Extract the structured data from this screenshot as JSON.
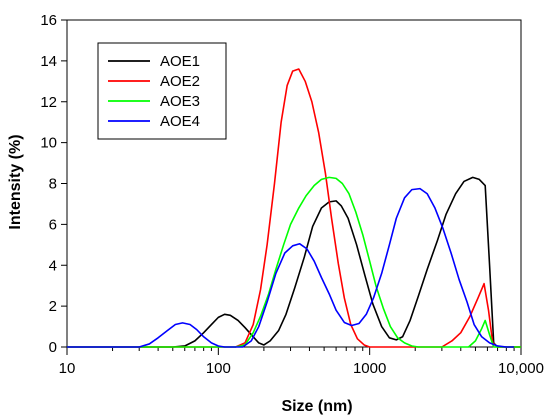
{
  "chart_data": {
    "type": "line",
    "title": "",
    "xlabel": "Size (nm)",
    "ylabel": "Intensity (%)",
    "xscale": "log",
    "xlim": [
      10,
      10000
    ],
    "ylim": [
      0,
      16
    ],
    "x_ticks": [
      10,
      100,
      1000,
      10000
    ],
    "x_tick_labels": [
      "10",
      "100",
      "1000",
      "10,000"
    ],
    "y_ticks": [
      0,
      2,
      4,
      6,
      8,
      10,
      12,
      14,
      16
    ],
    "y_tick_labels": [
      "0",
      "2",
      "4",
      "6",
      "8",
      "10",
      "12",
      "14",
      "16"
    ],
    "grid": false,
    "legend_position": "top-left",
    "series": [
      {
        "name": "AOE1",
        "color": "#000000",
        "points": [
          [
            10,
            0
          ],
          [
            50,
            0
          ],
          [
            60,
            0.05
          ],
          [
            70,
            0.3
          ],
          [
            80,
            0.7
          ],
          [
            90,
            1.1
          ],
          [
            100,
            1.45
          ],
          [
            110,
            1.6
          ],
          [
            120,
            1.55
          ],
          [
            135,
            1.3
          ],
          [
            150,
            0.95
          ],
          [
            170,
            0.5
          ],
          [
            185,
            0.2
          ],
          [
            200,
            0.1
          ],
          [
            220,
            0.3
          ],
          [
            250,
            0.8
          ],
          [
            280,
            1.6
          ],
          [
            320,
            2.9
          ],
          [
            370,
            4.4
          ],
          [
            420,
            5.9
          ],
          [
            480,
            6.8
          ],
          [
            540,
            7.1
          ],
          [
            600,
            7.15
          ],
          [
            650,
            6.9
          ],
          [
            720,
            6.3
          ],
          [
            820,
            5.0
          ],
          [
            930,
            3.5
          ],
          [
            1050,
            2.1
          ],
          [
            1200,
            1.0
          ],
          [
            1350,
            0.45
          ],
          [
            1500,
            0.35
          ],
          [
            1650,
            0.5
          ],
          [
            1850,
            1.3
          ],
          [
            2100,
            2.5
          ],
          [
            2400,
            3.8
          ],
          [
            2800,
            5.2
          ],
          [
            3200,
            6.5
          ],
          [
            3700,
            7.5
          ],
          [
            4200,
            8.1
          ],
          [
            4800,
            8.3
          ],
          [
            5300,
            8.2
          ],
          [
            5800,
            7.9
          ],
          [
            6200,
            4.0
          ],
          [
            6600,
            0.2
          ],
          [
            7000,
            0
          ],
          [
            10000,
            0
          ]
        ]
      },
      {
        "name": "AOE2",
        "color": "#ff0000",
        "points": [
          [
            10,
            0
          ],
          [
            130,
            0
          ],
          [
            150,
            0.2
          ],
          [
            170,
            1.1
          ],
          [
            190,
            2.8
          ],
          [
            210,
            5.0
          ],
          [
            235,
            8.0
          ],
          [
            260,
            11.0
          ],
          [
            285,
            12.8
          ],
          [
            310,
            13.5
          ],
          [
            340,
            13.6
          ],
          [
            375,
            13.0
          ],
          [
            415,
            12.0
          ],
          [
            460,
            10.5
          ],
          [
            510,
            8.5
          ],
          [
            560,
            6.3
          ],
          [
            620,
            4.1
          ],
          [
            680,
            2.4
          ],
          [
            750,
            1.1
          ],
          [
            830,
            0.4
          ],
          [
            920,
            0.1
          ],
          [
            1000,
            0
          ],
          [
            3000,
            0
          ],
          [
            3500,
            0.3
          ],
          [
            4000,
            0.7
          ],
          [
            4600,
            1.5
          ],
          [
            5200,
            2.4
          ],
          [
            5700,
            3.1
          ],
          [
            6100,
            1.8
          ],
          [
            6500,
            0.2
          ],
          [
            7000,
            0
          ],
          [
            10000,
            0
          ]
        ]
      },
      {
        "name": "AOE3",
        "color": "#00ff00",
        "points": [
          [
            10,
            0
          ],
          [
            130,
            0
          ],
          [
            150,
            0.1
          ],
          [
            170,
            0.7
          ],
          [
            190,
            1.5
          ],
          [
            215,
            2.6
          ],
          [
            240,
            3.8
          ],
          [
            270,
            5.0
          ],
          [
            300,
            6.0
          ],
          [
            340,
            6.8
          ],
          [
            380,
            7.4
          ],
          [
            430,
            7.9
          ],
          [
            480,
            8.2
          ],
          [
            540,
            8.3
          ],
          [
            600,
            8.25
          ],
          [
            660,
            8.0
          ],
          [
            730,
            7.5
          ],
          [
            810,
            6.6
          ],
          [
            900,
            5.5
          ],
          [
            1000,
            4.2
          ],
          [
            1100,
            3.0
          ],
          [
            1230,
            1.9
          ],
          [
            1370,
            1.0
          ],
          [
            1530,
            0.45
          ],
          [
            1700,
            0.2
          ],
          [
            1900,
            0.05
          ],
          [
            2100,
            0
          ],
          [
            4500,
            0
          ],
          [
            5000,
            0.3
          ],
          [
            5500,
            0.9
          ],
          [
            5800,
            1.3
          ],
          [
            6200,
            0.6
          ],
          [
            6600,
            0
          ],
          [
            10000,
            0
          ]
        ]
      },
      {
        "name": "AOE4",
        "color": "#0000ff",
        "points": [
          [
            10,
            0
          ],
          [
            30,
            0
          ],
          [
            35,
            0.15
          ],
          [
            40,
            0.45
          ],
          [
            46,
            0.8
          ],
          [
            52,
            1.1
          ],
          [
            58,
            1.18
          ],
          [
            65,
            1.1
          ],
          [
            72,
            0.85
          ],
          [
            80,
            0.5
          ],
          [
            90,
            0.2
          ],
          [
            100,
            0.05
          ],
          [
            110,
            0
          ],
          [
            145,
            0
          ],
          [
            165,
            0.3
          ],
          [
            185,
            1.0
          ],
          [
            210,
            2.2
          ],
          [
            240,
            3.6
          ],
          [
            275,
            4.6
          ],
          [
            310,
            4.95
          ],
          [
            345,
            5.05
          ],
          [
            385,
            4.8
          ],
          [
            430,
            4.2
          ],
          [
            480,
            3.4
          ],
          [
            540,
            2.6
          ],
          [
            600,
            1.8
          ],
          [
            680,
            1.2
          ],
          [
            760,
            1.05
          ],
          [
            850,
            1.15
          ],
          [
            950,
            1.6
          ],
          [
            1060,
            2.4
          ],
          [
            1200,
            3.6
          ],
          [
            1350,
            5.0
          ],
          [
            1500,
            6.3
          ],
          [
            1700,
            7.3
          ],
          [
            1900,
            7.7
          ],
          [
            2150,
            7.75
          ],
          [
            2400,
            7.5
          ],
          [
            2700,
            6.8
          ],
          [
            3050,
            5.8
          ],
          [
            3450,
            4.6
          ],
          [
            3900,
            3.3
          ],
          [
            4400,
            2.2
          ],
          [
            4900,
            1.1
          ],
          [
            5500,
            0.5
          ],
          [
            6200,
            0.2
          ],
          [
            7000,
            0.05
          ],
          [
            8000,
            0
          ],
          [
            9000,
            0
          ]
        ]
      }
    ]
  }
}
